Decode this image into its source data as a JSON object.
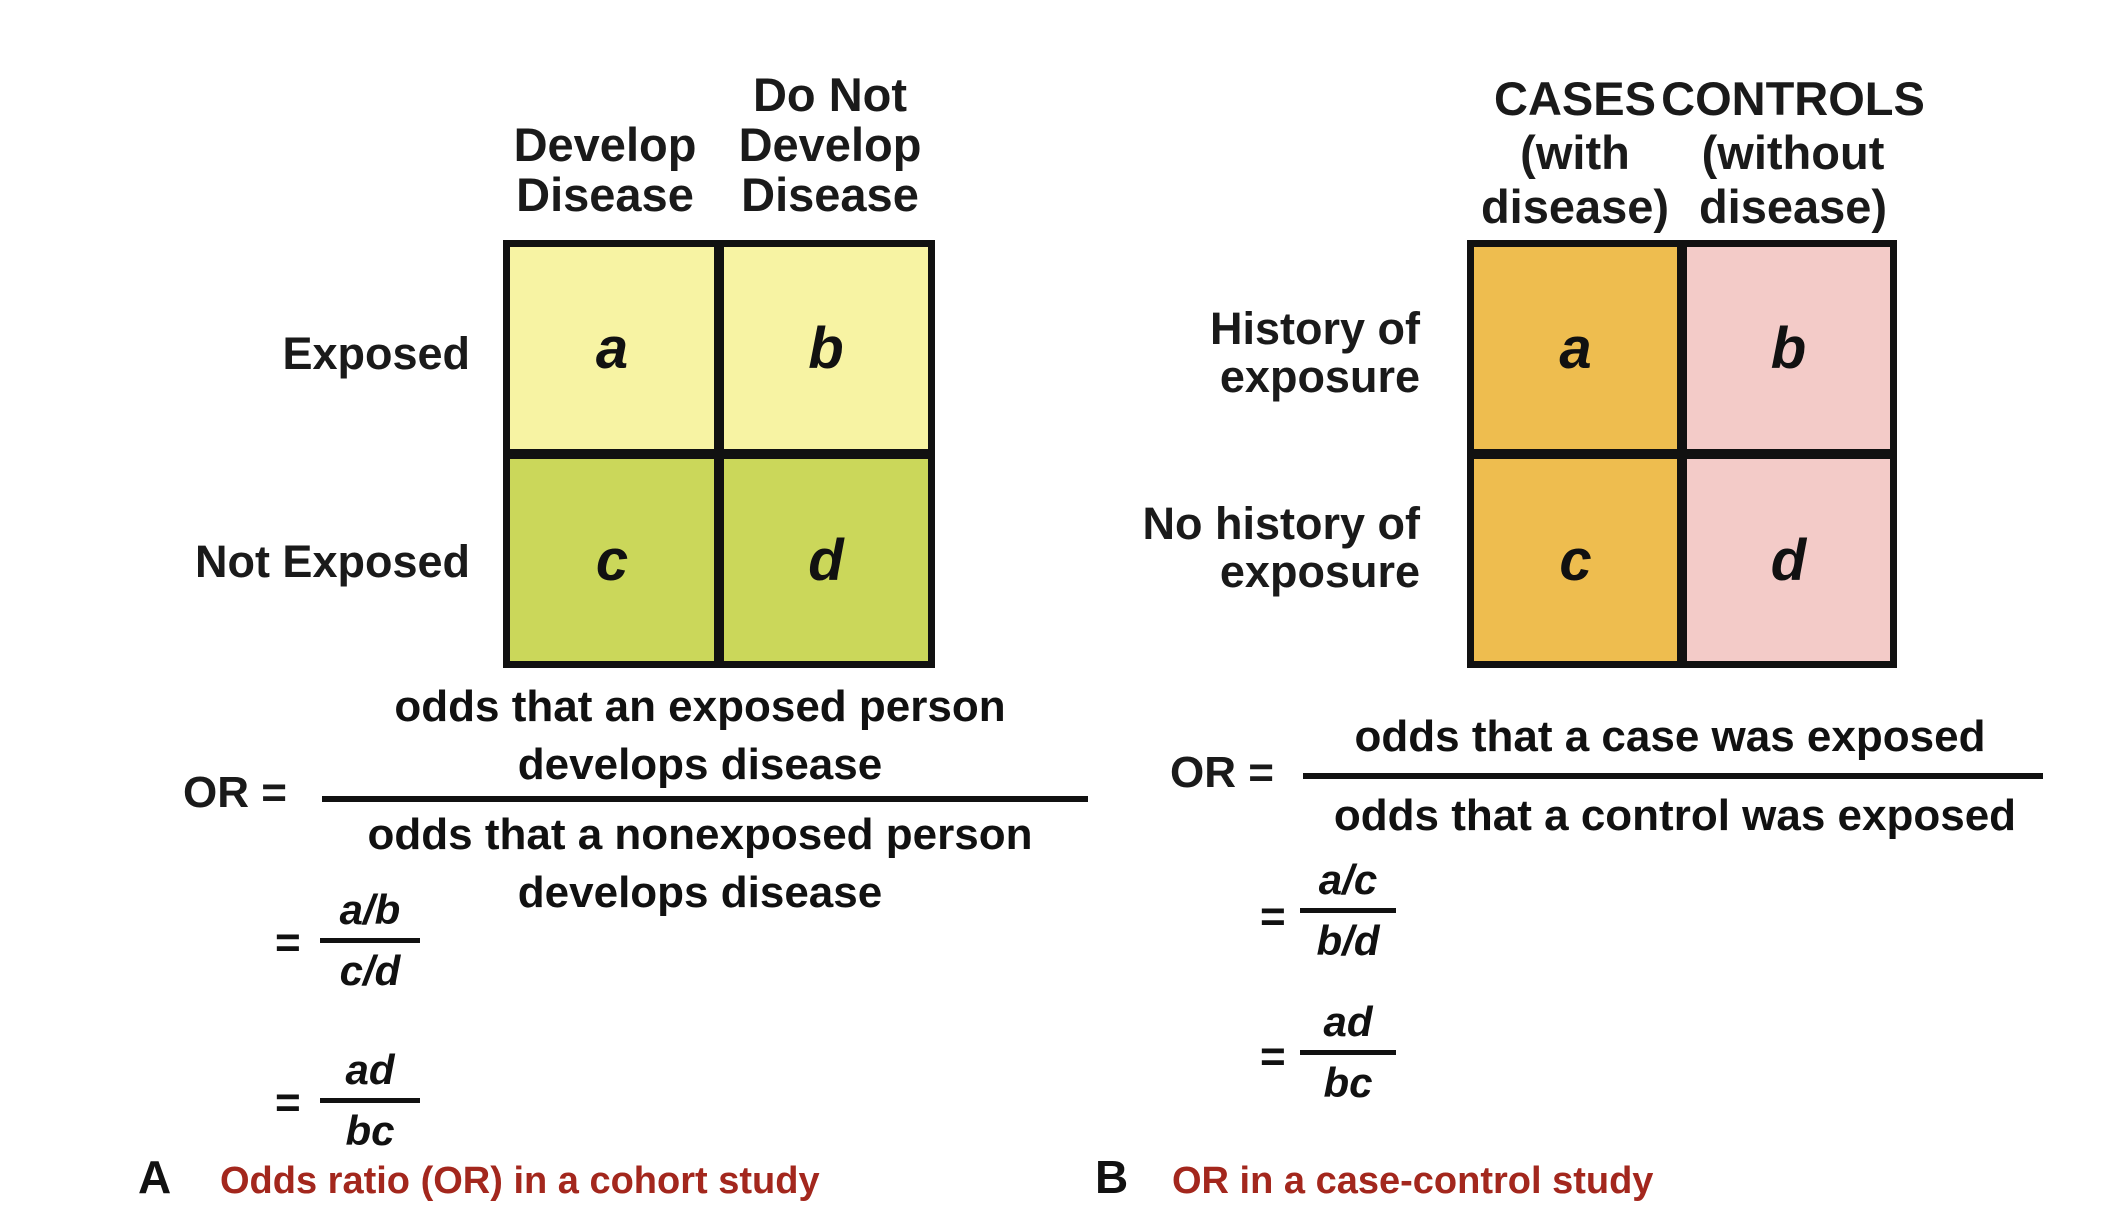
{
  "panel_a": {
    "col_headers": [
      "Develop\nDisease",
      "Do Not\nDevelop\nDisease"
    ],
    "row_labels": [
      "Exposed",
      "Not Exposed"
    ],
    "cells": [
      "a",
      "b",
      "c",
      "d"
    ],
    "colors": {
      "top": "#f7f3a3",
      "bottom": "#cbd75a"
    },
    "or_label": "OR =",
    "numerator": "odds that an exposed person\ndevelops disease",
    "denominator": "odds that a nonexposed person\ndevelops disease",
    "eq1": {
      "eq": "=",
      "num": "a/b",
      "den": "c/d"
    },
    "eq2": {
      "eq": "=",
      "num": "ad",
      "den": "bc"
    },
    "letter": "A",
    "caption": "Odds ratio (OR) in a cohort study"
  },
  "panel_b": {
    "col_headers": [
      "CASES\n(with\ndisease)",
      "CONTROLS\n(without\ndisease)"
    ],
    "row_labels": [
      "History of\nexposure",
      "No history of\nexposure"
    ],
    "cells": [
      "a",
      "b",
      "c",
      "d"
    ],
    "colors": {
      "cases": "#eebd4f",
      "controls": "#f3cbc8"
    },
    "or_label": "OR =",
    "numerator": "odds that a case was exposed",
    "denominator": "odds that a control was exposed",
    "eq1": {
      "eq": "=",
      "num": "a/c",
      "den": "b/d"
    },
    "eq2": {
      "eq": "=",
      "num": "ad",
      "den": "bc"
    },
    "letter": "B",
    "caption": "OR in a case-control study"
  }
}
